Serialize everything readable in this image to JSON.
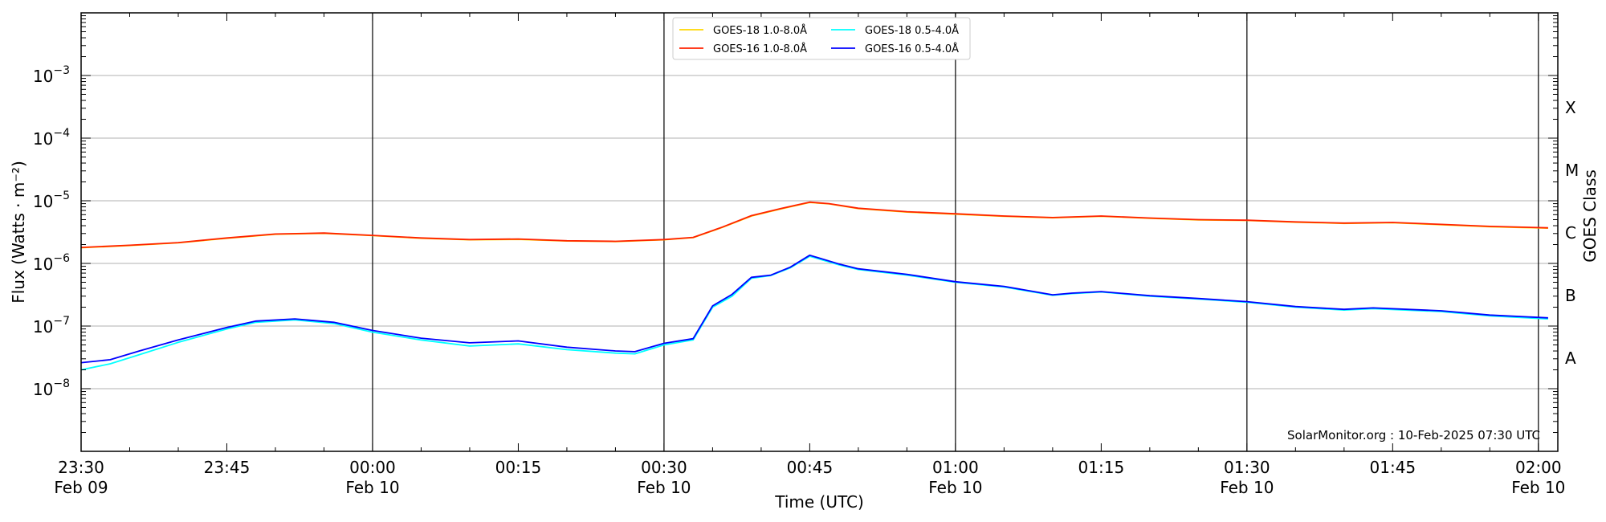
{
  "chart_data": {
    "type": "line",
    "title": "",
    "xlabel": "Time (UTC)",
    "ylabel": "Flux (Watts · m⁻²)",
    "y2label": "GOES Class",
    "yscale": "log",
    "ylim": [
      1e-09,
      0.01
    ],
    "xlim": [
      "2025-02-09 23:30",
      "2025-02-10 02:02"
    ],
    "x_ticks": [
      {
        "time": "2025-02-09 23:30",
        "top": "23:30",
        "bottom": "Feb 09"
      },
      {
        "time": "2025-02-09 23:45",
        "top": "23:45",
        "bottom": ""
      },
      {
        "time": "2025-02-10 00:00",
        "top": "00:00",
        "bottom": "Feb 10"
      },
      {
        "time": "2025-02-10 00:15",
        "top": "00:15",
        "bottom": ""
      },
      {
        "time": "2025-02-10 00:30",
        "top": "00:30",
        "bottom": "Feb 10"
      },
      {
        "time": "2025-02-10 00:45",
        "top": "00:45",
        "bottom": ""
      },
      {
        "time": "2025-02-10 01:00",
        "top": "01:00",
        "bottom": "Feb 10"
      },
      {
        "time": "2025-02-10 01:15",
        "top": "01:15",
        "bottom": ""
      },
      {
        "time": "2025-02-10 01:30",
        "top": "01:30",
        "bottom": "Feb 10"
      },
      {
        "time": "2025-02-10 01:45",
        "top": "01:45",
        "bottom": ""
      },
      {
        "time": "2025-02-10 02:00",
        "top": "02:00",
        "bottom": "Feb 10"
      }
    ],
    "y_ticks": [
      {
        "value": 1e-08,
        "mantissa": "10",
        "exp": "−8"
      },
      {
        "value": 1e-07,
        "mantissa": "10",
        "exp": "−7"
      },
      {
        "value": 1e-06,
        "mantissa": "10",
        "exp": "−6"
      },
      {
        "value": 1e-05,
        "mantissa": "10",
        "exp": "−5"
      },
      {
        "value": 0.0001,
        "mantissa": "10",
        "exp": "−4"
      },
      {
        "value": 0.001,
        "mantissa": "10",
        "exp": "−3"
      }
    ],
    "vlines": [
      "2025-02-10 00:00",
      "2025-02-10 00:30",
      "2025-02-10 01:00",
      "2025-02-10 01:30",
      "2025-02-10 02:00"
    ],
    "goes_classes": [
      {
        "label": "A",
        "value": 3.16e-08
      },
      {
        "label": "B",
        "value": 3.16e-07
      },
      {
        "label": "C",
        "value": 3.16e-06
      },
      {
        "label": "M",
        "value": 3.16e-05
      },
      {
        "label": "X",
        "value": 0.000316
      }
    ],
    "legend_position": "top-center",
    "legend": [
      {
        "name": "GOES-18 1.0-8.0Å",
        "color": "#FFD700"
      },
      {
        "name": "GOES-16 1.0-8.0Å",
        "color": "#FF2200"
      },
      {
        "name": "GOES-18 0.5-4.0Å",
        "color": "#00FFFF"
      },
      {
        "name": "GOES-16 0.5-4.0Å",
        "color": "#0000FF"
      }
    ],
    "credit": "SolarMonitor.org : 10-Feb-2025 07:30 UTC",
    "grid": "horizontal",
    "series": [
      {
        "name": "GOES-16 1.0-8.0Å",
        "color": "#FF2200",
        "x": [
          "2025-02-09 23:30",
          "2025-02-09 23:35",
          "2025-02-09 23:40",
          "2025-02-09 23:45",
          "2025-02-09 23:50",
          "2025-02-09 23:55",
          "2025-02-10 00:00",
          "2025-02-10 00:05",
          "2025-02-10 00:10",
          "2025-02-10 00:15",
          "2025-02-10 00:20",
          "2025-02-10 00:25",
          "2025-02-10 00:30",
          "2025-02-10 00:33",
          "2025-02-10 00:36",
          "2025-02-10 00:39",
          "2025-02-10 00:42",
          "2025-02-10 00:45",
          "2025-02-10 00:47",
          "2025-02-10 00:50",
          "2025-02-10 00:55",
          "2025-02-10 01:00",
          "2025-02-10 01:05",
          "2025-02-10 01:10",
          "2025-02-10 01:15",
          "2025-02-10 01:20",
          "2025-02-10 01:25",
          "2025-02-10 01:30",
          "2025-02-10 01:35",
          "2025-02-10 01:40",
          "2025-02-10 01:45",
          "2025-02-10 01:50",
          "2025-02-10 01:55",
          "2025-02-10 02:01"
        ],
        "y": [
          1.8e-06,
          1.95e-06,
          2.15e-06,
          2.55e-06,
          2.95e-06,
          3.05e-06,
          2.8e-06,
          2.55e-06,
          2.4e-06,
          2.45e-06,
          2.3e-06,
          2.25e-06,
          2.4e-06,
          2.6e-06,
          3.8e-06,
          5.8e-06,
          7.5e-06,
          9.5e-06,
          9e-06,
          7.6e-06,
          6.7e-06,
          6.2e-06,
          5.7e-06,
          5.4e-06,
          5.7e-06,
          5.3e-06,
          5e-06,
          4.9e-06,
          4.6e-06,
          4.4e-06,
          4.5e-06,
          4.2e-06,
          3.9e-06,
          3.7e-06
        ]
      },
      {
        "name": "GOES-18 1.0-8.0Å",
        "color": "#FFD700",
        "x": [
          "2025-02-09 23:30",
          "2025-02-09 23:35",
          "2025-02-09 23:40",
          "2025-02-09 23:45",
          "2025-02-09 23:50",
          "2025-02-09 23:55",
          "2025-02-10 00:00",
          "2025-02-10 00:05",
          "2025-02-10 00:10",
          "2025-02-10 00:15",
          "2025-02-10 00:20",
          "2025-02-10 00:25",
          "2025-02-10 00:30",
          "2025-02-10 00:33",
          "2025-02-10 00:36",
          "2025-02-10 00:39",
          "2025-02-10 00:42",
          "2025-02-10 00:45",
          "2025-02-10 00:47",
          "2025-02-10 00:50",
          "2025-02-10 00:55",
          "2025-02-10 01:00",
          "2025-02-10 01:05",
          "2025-02-10 01:10",
          "2025-02-10 01:15",
          "2025-02-10 01:20",
          "2025-02-10 01:25",
          "2025-02-10 01:30",
          "2025-02-10 01:35",
          "2025-02-10 01:40",
          "2025-02-10 01:45",
          "2025-02-10 01:50",
          "2025-02-10 01:55",
          "2025-02-10 02:01"
        ],
        "y": [
          1.78e-06,
          1.93e-06,
          2.13e-06,
          2.52e-06,
          2.92e-06,
          3.02e-06,
          2.78e-06,
          2.52e-06,
          2.38e-06,
          2.42e-06,
          2.28e-06,
          2.23e-06,
          2.38e-06,
          2.58e-06,
          3.75e-06,
          5.7e-06,
          7.4e-06,
          9.4e-06,
          8.9e-06,
          7.5e-06,
          6.6e-06,
          6.1e-06,
          5.65e-06,
          5.35e-06,
          5.65e-06,
          5.25e-06,
          4.95e-06,
          4.85e-06,
          4.55e-06,
          4.35e-06,
          4.45e-06,
          4.15e-06,
          3.85e-06,
          3.65e-06
        ]
      },
      {
        "name": "GOES-18 0.5-4.0Å",
        "color": "#00FFFF",
        "x": [
          "2025-02-09 23:30",
          "2025-02-09 23:33",
          "2025-02-09 23:36",
          "2025-02-09 23:40",
          "2025-02-09 23:45",
          "2025-02-09 23:48",
          "2025-02-09 23:52",
          "2025-02-09 23:56",
          "2025-02-10 00:00",
          "2025-02-10 00:05",
          "2025-02-10 00:10",
          "2025-02-10 00:15",
          "2025-02-10 00:20",
          "2025-02-10 00:25",
          "2025-02-10 00:27",
          "2025-02-10 00:30",
          "2025-02-10 00:33",
          "2025-02-10 00:35",
          "2025-02-10 00:37",
          "2025-02-10 00:39",
          "2025-02-10 00:41",
          "2025-02-10 00:43",
          "2025-02-10 00:45",
          "2025-02-10 00:48",
          "2025-02-10 00:50",
          "2025-02-10 00:55",
          "2025-02-10 01:00",
          "2025-02-10 01:05",
          "2025-02-10 01:10",
          "2025-02-10 01:12",
          "2025-02-10 01:15",
          "2025-02-10 01:20",
          "2025-02-10 01:25",
          "2025-02-10 01:30",
          "2025-02-10 01:35",
          "2025-02-10 01:40",
          "2025-02-10 01:43",
          "2025-02-10 01:50",
          "2025-02-10 01:55",
          "2025-02-10 02:01"
        ],
        "y": [
          2e-08,
          2.5e-08,
          3.5e-08,
          5.5e-08,
          9e-08,
          1.15e-07,
          1.25e-07,
          1.1e-07,
          8e-08,
          6e-08,
          4.8e-08,
          5.2e-08,
          4.2e-08,
          3.7e-08,
          3.6e-08,
          5e-08,
          6e-08,
          2e-07,
          3e-07,
          5.8e-07,
          6.4e-07,
          8.5e-07,
          1.3e-06,
          9.5e-07,
          8e-07,
          6.5e-07,
          5e-07,
          4.2e-07,
          3.1e-07,
          3.3e-07,
          3.5e-07,
          3e-07,
          2.7e-07,
          2.4e-07,
          2e-07,
          1.8e-07,
          1.9e-07,
          1.7e-07,
          1.45e-07,
          1.3e-07
        ]
      },
      {
        "name": "GOES-16 0.5-4.0Å",
        "color": "#0000FF",
        "x": [
          "2025-02-09 23:30",
          "2025-02-09 23:33",
          "2025-02-09 23:36",
          "2025-02-09 23:40",
          "2025-02-09 23:45",
          "2025-02-09 23:48",
          "2025-02-09 23:52",
          "2025-02-09 23:56",
          "2025-02-10 00:00",
          "2025-02-10 00:05",
          "2025-02-10 00:10",
          "2025-02-10 00:15",
          "2025-02-10 00:20",
          "2025-02-10 00:25",
          "2025-02-10 00:27",
          "2025-02-10 00:30",
          "2025-02-10 00:33",
          "2025-02-10 00:35",
          "2025-02-10 00:37",
          "2025-02-10 00:39",
          "2025-02-10 00:41",
          "2025-02-10 00:43",
          "2025-02-10 00:45",
          "2025-02-10 00:48",
          "2025-02-10 00:50",
          "2025-02-10 00:55",
          "2025-02-10 01:00",
          "2025-02-10 01:05",
          "2025-02-10 01:10",
          "2025-02-10 01:12",
          "2025-02-10 01:15",
          "2025-02-10 01:20",
          "2025-02-10 01:25",
          "2025-02-10 01:30",
          "2025-02-10 01:35",
          "2025-02-10 01:40",
          "2025-02-10 01:43",
          "2025-02-10 01:50",
          "2025-02-10 01:55",
          "2025-02-10 02:01"
        ],
        "y": [
          2.6e-08,
          2.9e-08,
          4e-08,
          6e-08,
          9.5e-08,
          1.2e-07,
          1.3e-07,
          1.15e-07,
          8.5e-08,
          6.4e-08,
          5.4e-08,
          5.8e-08,
          4.6e-08,
          4e-08,
          3.9e-08,
          5.3e-08,
          6.3e-08,
          2.1e-07,
          3.2e-07,
          6e-07,
          6.5e-07,
          8.7e-07,
          1.35e-06,
          9.8e-07,
          8.2e-07,
          6.7e-07,
          5.1e-07,
          4.3e-07,
          3.15e-07,
          3.35e-07,
          3.55e-07,
          3.05e-07,
          2.75e-07,
          2.45e-07,
          2.05e-07,
          1.85e-07,
          1.95e-07,
          1.75e-07,
          1.5e-07,
          1.35e-07
        ]
      }
    ]
  }
}
